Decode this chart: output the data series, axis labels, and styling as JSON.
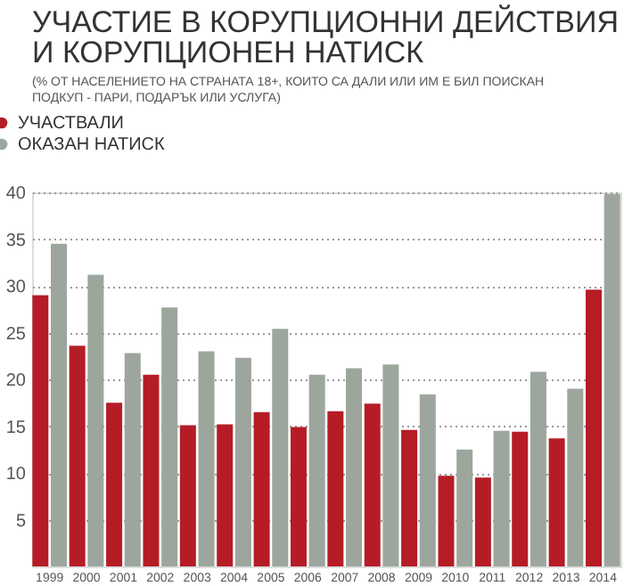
{
  "chart_data": {
    "type": "bar",
    "title": "УЧАСТИЕ В КОРУПЦИОННИ ДЕЙСТВИЯ И КОРУПЦИОНЕН НАТИСК",
    "subtitle": "(% ОТ НАСЕЛЕНИЕТО НА СТРАНАТА 18+, КОИТО СА ДАЛИ ИЛИ ИМ Е БИЛ ПОИСКАН ПОДКУП - ПАРИ, ПОДАРЪК ИЛИ УСЛУГА)",
    "categories": [
      "1999",
      "2000",
      "2001",
      "2002",
      "2003",
      "2004",
      "2005",
      "2006",
      "2007",
      "2008",
      "2009",
      "2010",
      "2011",
      "2012",
      "2013",
      "2014"
    ],
    "series": [
      {
        "name": "УЧАСТВАЛИ",
        "color": "#b51c26",
        "values": [
          29.0,
          23.6,
          17.5,
          20.5,
          15.1,
          15.2,
          16.5,
          14.9,
          16.6,
          17.4,
          14.6,
          9.7,
          9.5,
          14.4,
          13.7,
          29.6
        ]
      },
      {
        "name": "ОКАЗАН НАТИСК",
        "color": "#9ca69d",
        "values": [
          34.5,
          31.2,
          22.8,
          27.7,
          23.0,
          22.3,
          25.4,
          20.5,
          21.2,
          21.6,
          18.4,
          12.5,
          14.5,
          20.8,
          19.0,
          39.8
        ]
      }
    ],
    "ylim": [
      0,
      40
    ],
    "yticks": [
      5,
      10,
      15,
      20,
      25,
      30,
      35,
      40
    ],
    "grid": "y",
    "legend": "top left"
  }
}
